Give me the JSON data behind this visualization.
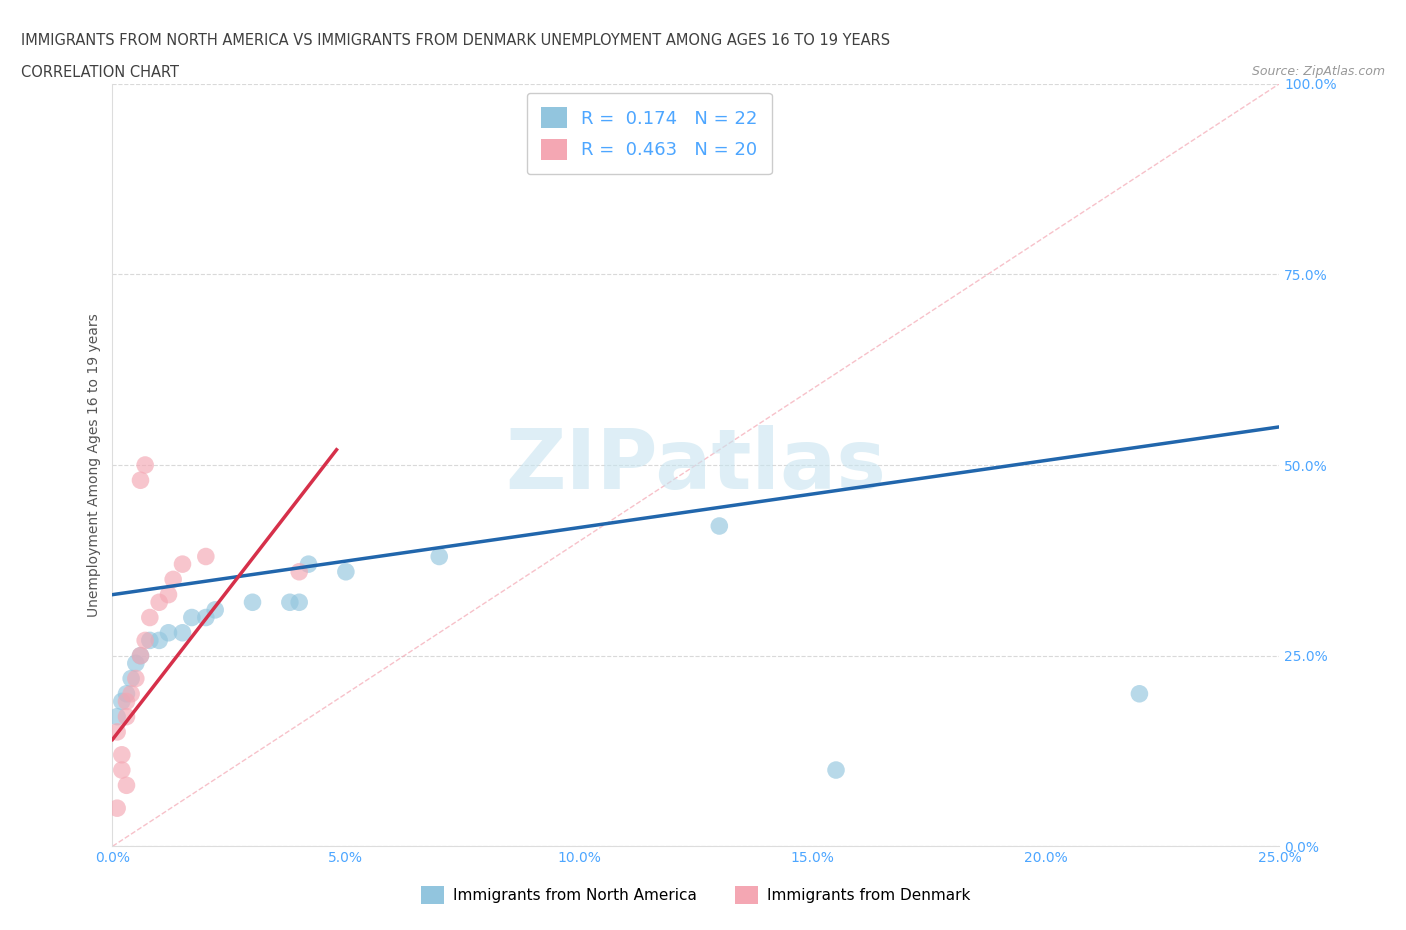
{
  "title_line1": "IMMIGRANTS FROM NORTH AMERICA VS IMMIGRANTS FROM DENMARK UNEMPLOYMENT AMONG AGES 16 TO 19 YEARS",
  "title_line2": "CORRELATION CHART",
  "source_text": "Source: ZipAtlas.com",
  "ylabel": "Unemployment Among Ages 16 to 19 years",
  "legend_bottom": [
    "Immigrants from North America",
    "Immigrants from Denmark"
  ],
  "R_blue": 0.174,
  "N_blue": 22,
  "R_pink": 0.463,
  "N_pink": 20,
  "blue_scatter": [
    [
      0.001,
      0.17
    ],
    [
      0.002,
      0.19
    ],
    [
      0.003,
      0.2
    ],
    [
      0.004,
      0.22
    ],
    [
      0.005,
      0.24
    ],
    [
      0.006,
      0.25
    ],
    [
      0.008,
      0.27
    ],
    [
      0.01,
      0.27
    ],
    [
      0.012,
      0.28
    ],
    [
      0.015,
      0.28
    ],
    [
      0.017,
      0.3
    ],
    [
      0.02,
      0.3
    ],
    [
      0.022,
      0.31
    ],
    [
      0.03,
      0.32
    ],
    [
      0.038,
      0.32
    ],
    [
      0.04,
      0.32
    ],
    [
      0.042,
      0.37
    ],
    [
      0.05,
      0.36
    ],
    [
      0.07,
      0.38
    ],
    [
      0.13,
      0.42
    ],
    [
      0.155,
      0.1
    ],
    [
      0.22,
      0.2
    ]
  ],
  "pink_scatter": [
    [
      0.001,
      0.05
    ],
    [
      0.002,
      0.12
    ],
    [
      0.003,
      0.17
    ],
    [
      0.003,
      0.19
    ],
    [
      0.004,
      0.2
    ],
    [
      0.005,
      0.22
    ],
    [
      0.006,
      0.25
    ],
    [
      0.007,
      0.27
    ],
    [
      0.008,
      0.3
    ],
    [
      0.01,
      0.32
    ],
    [
      0.012,
      0.33
    ],
    [
      0.013,
      0.35
    ],
    [
      0.015,
      0.37
    ],
    [
      0.02,
      0.38
    ],
    [
      0.04,
      0.36
    ],
    [
      0.006,
      0.48
    ],
    [
      0.007,
      0.5
    ],
    [
      0.001,
      0.15
    ],
    [
      0.002,
      0.1
    ],
    [
      0.003,
      0.08
    ]
  ],
  "blue_trendline_x": [
    0.0,
    0.25
  ],
  "blue_trendline_y": [
    0.33,
    0.55
  ],
  "pink_trendline_x": [
    0.0,
    0.048
  ],
  "pink_trendline_y": [
    0.14,
    0.52
  ],
  "diag_line_x": [
    0.0,
    0.25
  ],
  "diag_line_y": [
    0.0,
    1.0
  ],
  "watermark": "ZIPatlas",
  "xlim": [
    0.0,
    0.25
  ],
  "ylim": [
    0.0,
    1.0
  ],
  "xticks": [
    0.0,
    0.05,
    0.1,
    0.15,
    0.2,
    0.25
  ],
  "xtick_labels": [
    "0.0%",
    "5.0%",
    "10.0%",
    "15.0%",
    "20.0%",
    "25.0%"
  ],
  "yticks": [
    0.0,
    0.25,
    0.5,
    0.75,
    1.0
  ],
  "ytick_labels": [
    "0.0%",
    "25.0%",
    "50.0%",
    "75.0%",
    "100.0%"
  ],
  "blue_color": "#92c5de",
  "pink_color": "#f4a7b3",
  "blue_line_color": "#2166ac",
  "pink_line_color": "#d6304a",
  "dashed_line_color": "#f4a7b3",
  "grid_color": "#d9d9d9",
  "title_color": "#404040",
  "source_color": "#999999",
  "tick_label_color": "#4da6ff"
}
